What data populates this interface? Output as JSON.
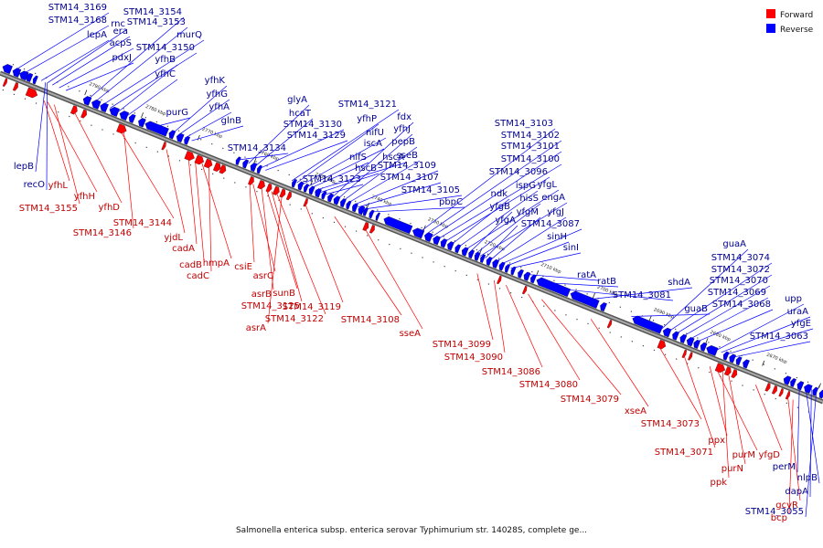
{
  "caption": "Salmonella enterica subsp. enterica serovar Typhimurium str. 14028S, complete ge...",
  "legend": {
    "forward": "Forward",
    "reverse": "Reverse"
  },
  "colors": {
    "forward": "#ff0000",
    "reverse": "#0000ff",
    "forward_label": "#c00000",
    "reverse_label": "#000090"
  },
  "ticks": [
    "2790 kbp",
    "2780 kbp",
    "2770 kbp",
    "2760 kbp",
    "2750 kbp",
    "2740 kbp",
    "2730 kbp",
    "2720 kbp",
    "2710 kbp",
    "2700 kbp",
    "2690 kbp",
    "2680 kbp",
    "2670 kbp",
    "2660 kbp"
  ],
  "reverse_labels": [
    "STM14_3169",
    "STM14_3168",
    "lepA",
    "rnc",
    "era",
    "acpS",
    "pdxJ",
    "STM14_3154",
    "STM14_3153",
    "murQ",
    "STM14_3150",
    "yfhB",
    "yfhC",
    "purG",
    "yfhK",
    "yfhG",
    "yfhA",
    "glnB",
    "STM14_3134",
    "glyA",
    "hcaT",
    "STM14_3130",
    "STM14_3129",
    "STM14_3121",
    "yfhP",
    "nifU",
    "iscA",
    "nifS",
    "hscA",
    "hscB",
    "STM14_3123",
    "fdx",
    "yfhJ",
    "pepB",
    "sseB",
    "STM14_3109",
    "STM14_3107",
    "STM14_3105",
    "pbpC",
    "STM14_3103",
    "STM14_3102",
    "STM14_3101",
    "STM14_3100",
    "STM14_3096",
    "ndk",
    "ispG",
    "yfgL",
    "yfgB",
    "hisS",
    "engA",
    "yfgA",
    "yfgM",
    "yfgJ",
    "STM14_3087",
    "sinH",
    "sinI",
    "ratA",
    "ratB",
    "STM14_3081",
    "shdA",
    "guaB",
    "guaA",
    "STM14_3074",
    "STM14_3072",
    "STM14_3070",
    "STM14_3069",
    "STM14_3068",
    "upp",
    "uraA",
    "yfgE",
    "STM14_3063",
    "lepB",
    "recO",
    "perM",
    "nlpB",
    "dapA",
    "STM14_3055"
  ],
  "forward_labels": [
    "yfhL",
    "yfhH",
    "STM14_3155",
    "yfhD",
    "STM14_3144",
    "STM14_3146",
    "yjdL",
    "cadA",
    "cadB",
    "hmpA",
    "cadC",
    "csiE",
    "asrC",
    "asrB",
    "sunB",
    "STM14_3125",
    "STM14_3122",
    "asrA",
    "STM14_3119",
    "STM14_3108",
    "sseA",
    "STM14_3099",
    "STM14_3090",
    "STM14_3086",
    "STM14_3080",
    "STM14_3079",
    "xseA",
    "STM14_3073",
    "STM14_3071",
    "ppx",
    "purM",
    "ppk",
    "purN",
    "yfgD",
    "gcvR",
    "bcp"
  ]
}
